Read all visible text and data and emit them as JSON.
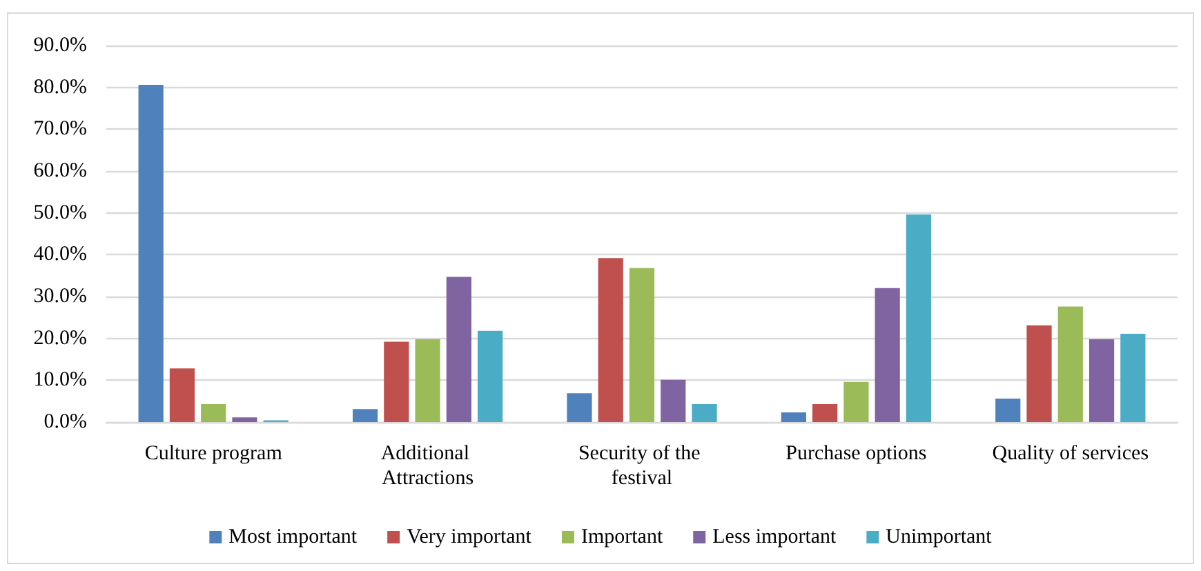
{
  "chart_data": {
    "type": "bar",
    "categories": [
      "Culture program",
      "Additional Attractions",
      "Security of the festival",
      "Purchase options",
      "Quality of services"
    ],
    "series": [
      {
        "name": "Most important",
        "color": "#4f81bd",
        "values": [
          80.6,
          3.1,
          6.9,
          2.3,
          5.6
        ]
      },
      {
        "name": "Very important",
        "color": "#c0504d",
        "values": [
          12.8,
          19.2,
          39.2,
          4.3,
          23.1
        ]
      },
      {
        "name": "Important",
        "color": "#9bbb59",
        "values": [
          4.3,
          19.8,
          36.8,
          9.6,
          27.6
        ]
      },
      {
        "name": "Less important",
        "color": "#8064a2",
        "values": [
          1.1,
          34.7,
          10.1,
          32.0,
          19.8
        ]
      },
      {
        "name": "Unimportant",
        "color": "#4bacc6",
        "values": [
          0.4,
          21.8,
          4.3,
          49.6,
          21.1
        ]
      }
    ],
    "ylim": [
      0,
      90
    ],
    "yticks": [
      {
        "value": 0,
        "label": "0.0%"
      },
      {
        "value": 10,
        "label": "10.0%"
      },
      {
        "value": 20,
        "label": "20.0%"
      },
      {
        "value": 30,
        "label": "30.0%"
      },
      {
        "value": 40,
        "label": "40.0%"
      },
      {
        "value": 50,
        "label": "50.0%"
      },
      {
        "value": 60,
        "label": "60.0%"
      },
      {
        "value": 70,
        "label": "70.0%"
      },
      {
        "value": 80,
        "label": "80.0%"
      },
      {
        "value": 90,
        "label": "90.0%"
      }
    ],
    "grid": "y",
    "legend": "bottom"
  }
}
